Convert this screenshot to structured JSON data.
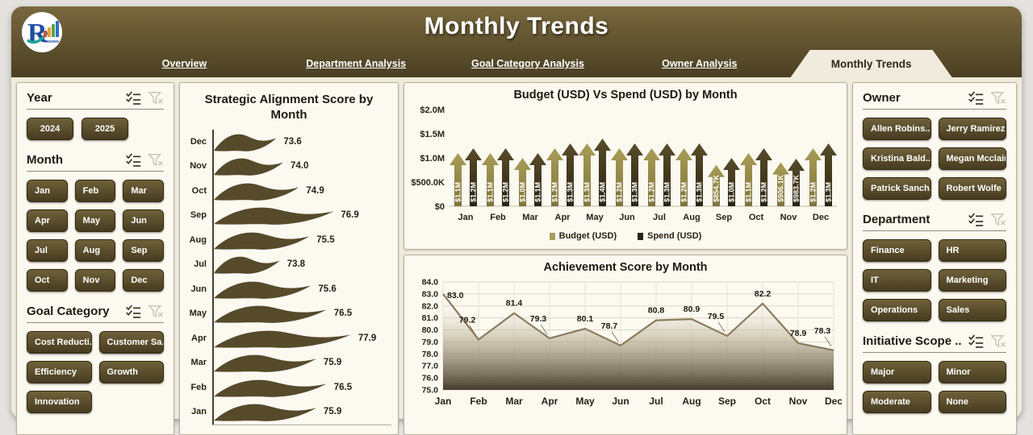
{
  "header": {
    "title": "Monthly Trends",
    "logo": "r-bar-chart-logo"
  },
  "nav": {
    "links": [
      "Overview",
      "Department Analysis",
      "Goal Category Analysis",
      "Owner Analysis"
    ],
    "active": "Monthly Trends"
  },
  "filters": {
    "year": {
      "title": "Year",
      "options": [
        "2024",
        "2025"
      ]
    },
    "month": {
      "title": "Month",
      "options": [
        "Jan",
        "Feb",
        "Mar",
        "Apr",
        "May",
        "Jun",
        "Jul",
        "Aug",
        "Sep",
        "Oct",
        "Nov",
        "Dec"
      ]
    },
    "goal_category": {
      "title": "Goal Category",
      "options": [
        "Cost Reducti...",
        "Customer Sa...",
        "Efficiency",
        "Growth",
        "Innovation"
      ]
    },
    "owner": {
      "title": "Owner",
      "options": [
        "Allen Robins...",
        "Jerry Ramirez",
        "Kristina Bald...",
        "Megan Mcclain",
        "Patrick Sanch...",
        "Robert Wolfe"
      ]
    },
    "department": {
      "title": "Department",
      "options": [
        "Finance",
        "HR",
        "IT",
        "Marketing",
        "Operations",
        "Sales"
      ]
    },
    "initiative_scope": {
      "title": "Initiative Scope ...",
      "options": [
        "Major",
        "Minor",
        "Moderate",
        "None"
      ]
    }
  },
  "icons": {
    "select_all": "checklist-icon",
    "clear_filter": "funnel-clear-icon"
  },
  "colors": {
    "header_top": "#79683e",
    "header_bottom": "#4a3f22",
    "dashboard_bg": "#f0ebdc",
    "card_bg": "#fcf9f1",
    "flame": "#564a2b",
    "budget_top": "#a89d57",
    "budget_bottom": "#7e7339",
    "spend_top": "#584c28",
    "spend_bottom": "#2b2412",
    "line": "#8b7b5c",
    "area_bottom": "#463d2b"
  },
  "chart_data": [
    {
      "type": "bar",
      "variant": "horizontal-flame",
      "title": "Strategic Alignment Score by Month",
      "categories": [
        "Dec",
        "Nov",
        "Oct",
        "Sep",
        "Aug",
        "Jul",
        "Jun",
        "May",
        "Apr",
        "Mar",
        "Feb",
        "Jan"
      ],
      "values": [
        73.6,
        74.0,
        74.9,
        76.9,
        75.5,
        73.8,
        75.6,
        76.5,
        77.9,
        75.9,
        76.5,
        75.9
      ],
      "xlim": [
        70,
        78
      ],
      "value_format": "0.1f"
    },
    {
      "type": "bar",
      "variant": "arrow-columns",
      "title": "Budget (USD) Vs Spend (USD) by Month",
      "categories": [
        "Jan",
        "Feb",
        "Mar",
        "Apr",
        "May",
        "Jun",
        "Jul",
        "Aug",
        "Sep",
        "Oct",
        "Nov",
        "Dec"
      ],
      "series": [
        {
          "name": "Budget (USD)",
          "color": "#a89d57",
          "color2": "#7e7339",
          "values": [
            1.1,
            1.1,
            1.0,
            1.2,
            1.3,
            1.2,
            1.2,
            1.2,
            0.8547,
            1.1,
            0.9061,
            1.2
          ],
          "labels": [
            "$1.1M",
            "$1.1M",
            "$1.0M",
            "$1.2M",
            "$1.3M",
            "$1.2M",
            "$1.2M",
            "$1.2M",
            "$854.7K",
            "$1.1M",
            "$906.1K",
            "$1.2M"
          ]
        },
        {
          "name": "Spend (USD)",
          "color": "#584c28",
          "color2": "#2b2412",
          "values": [
            1.2,
            1.2,
            1.1,
            1.3,
            1.4,
            1.3,
            1.3,
            1.3,
            1.0,
            1.2,
            0.9837,
            1.3
          ],
          "labels": [
            "$1.2M",
            "$1.2M",
            "$1.1M",
            "$1.3M",
            "$1.4M",
            "$1.3M",
            "$1.3M",
            "$1.3M",
            "$1.0M",
            "$1.2M",
            "$983.7K",
            "$1.3M"
          ]
        }
      ],
      "ylim": [
        0,
        2
      ],
      "yticks": [
        {
          "value": 0,
          "label": "$0"
        },
        {
          "value": 0.5,
          "label": "$500.0K"
        },
        {
          "value": 1,
          "label": "$1.0M"
        },
        {
          "value": 1.5,
          "label": "$1.5M"
        },
        {
          "value": 2,
          "label": "$2.0M"
        }
      ],
      "legend_position": "bottom"
    },
    {
      "type": "area",
      "title": "Achievement Score by Month",
      "categories": [
        "Jan",
        "Feb",
        "Mar",
        "Apr",
        "May",
        "Jun",
        "Jul",
        "Aug",
        "Sep",
        "Oct",
        "Nov",
        "Dec"
      ],
      "values": [
        83.0,
        79.2,
        81.4,
        79.3,
        80.1,
        78.7,
        80.8,
        80.9,
        79.5,
        82.2,
        78.9,
        78.3
      ],
      "ylim": [
        75,
        84
      ],
      "ytick_step": 1.0,
      "grid": true
    }
  ]
}
